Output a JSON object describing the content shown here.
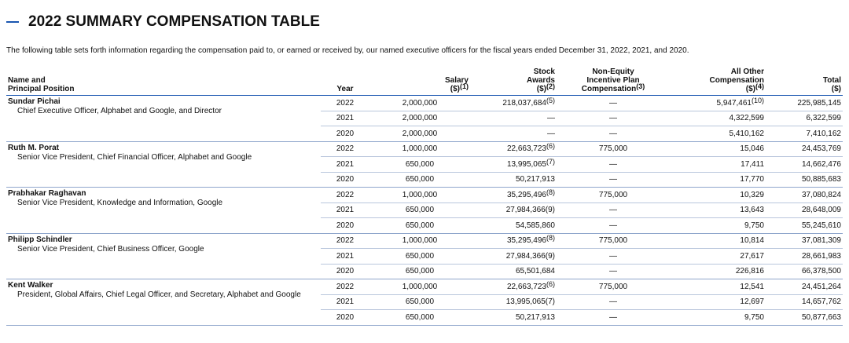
{
  "header": {
    "title": "2022 SUMMARY COMPENSATION TABLE",
    "intro": "The following table sets forth information regarding the compensation paid to, or earned or received by, our named executive officers for the fiscal years ended December 31, 2022, 2021, and 2020."
  },
  "table": {
    "columns": [
      {
        "lines": [
          "Name and",
          "Principal Position"
        ]
      },
      {
        "lines": [
          "Year"
        ]
      },
      {
        "lines": [
          "Salary",
          "($)"
        ],
        "note": "(1)"
      },
      {
        "lines": [
          "Stock",
          "Awards",
          "($)"
        ],
        "note": "(2)"
      },
      {
        "lines": [
          "Non-Equity",
          "Incentive Plan",
          "Compensation"
        ],
        "note": "(3)"
      },
      {
        "lines": [
          "All Other",
          "Compensation",
          "($)"
        ],
        "note": "(4)"
      },
      {
        "lines": [
          "Total",
          "($)"
        ]
      }
    ],
    "officers": [
      {
        "name": "Sundar Pichai",
        "position": "Chief Executive Officer, Alphabet and Google, and Director",
        "rows": [
          [
            "2022",
            "2,000,000",
            {
              "text": "218,037,684",
              "note": "(5)"
            },
            "—",
            {
              "text": "5,947,461",
              "note": "(10)"
            },
            "225,985,145"
          ],
          [
            "2021",
            "2,000,000",
            "—",
            "—",
            "4,322,599",
            "6,322,599"
          ],
          [
            "2020",
            "2,000,000",
            "—",
            "—",
            "5,410,162",
            "7,410,162"
          ]
        ]
      },
      {
        "name": "Ruth M. Porat",
        "position": "Senior Vice President, Chief Financial Officer, Alphabet and Google",
        "rows": [
          [
            "2022",
            "1,000,000",
            {
              "text": "22,663,723",
              "note": "(6)"
            },
            "775,000",
            "15,046",
            "24,453,769"
          ],
          [
            "2021",
            "650,000",
            {
              "text": "13,995,065",
              "note": "(7)"
            },
            "—",
            "17,411",
            "14,662,476"
          ],
          [
            "2020",
            "650,000",
            "50,217,913",
            "—",
            "17,770",
            "50,885,683"
          ]
        ]
      },
      {
        "name": "Prabhakar Raghavan",
        "position": "Senior Vice President, Knowledge and Information, Google",
        "rows": [
          [
            "2022",
            "1,000,000",
            {
              "text": "35,295,496",
              "note": "(8)"
            },
            "775,000",
            "10,329",
            "37,080,824"
          ],
          [
            "2021",
            "650,000",
            "27,984,366(9)",
            "—",
            "13,643",
            "28,648,009"
          ],
          [
            "2020",
            "650,000",
            "54,585,860",
            "—",
            "9,750",
            "55,245,610"
          ]
        ]
      },
      {
        "name": "Philipp Schindler",
        "position": "Senior Vice President, Chief Business Officer, Google",
        "rows": [
          [
            "2022",
            "1,000,000",
            {
              "text": "35,295,496",
              "note": "(8)"
            },
            "775,000",
            "10,814",
            "37,081,309"
          ],
          [
            "2021",
            "650,000",
            "27,984,366(9)",
            "—",
            "27,617",
            "28,661,983"
          ],
          [
            "2020",
            "650,000",
            "65,501,684",
            "—",
            "226,816",
            "66,378,500"
          ]
        ]
      },
      {
        "name": "Kent Walker",
        "position": "President, Global Affairs, Chief Legal Officer, and Secretary, Alphabet and Google",
        "rows": [
          [
            "2022",
            "1,000,000",
            {
              "text": "22,663,723",
              "note": "(6)"
            },
            "775,000",
            "12,541",
            "24,451,264"
          ],
          [
            "2021",
            "650,000",
            "13,995,065(7)",
            "—",
            "12,697",
            "14,657,762"
          ],
          [
            "2020",
            "650,000",
            "50,217,913",
            "—",
            "9,750",
            "50,877,663"
          ]
        ]
      }
    ]
  }
}
